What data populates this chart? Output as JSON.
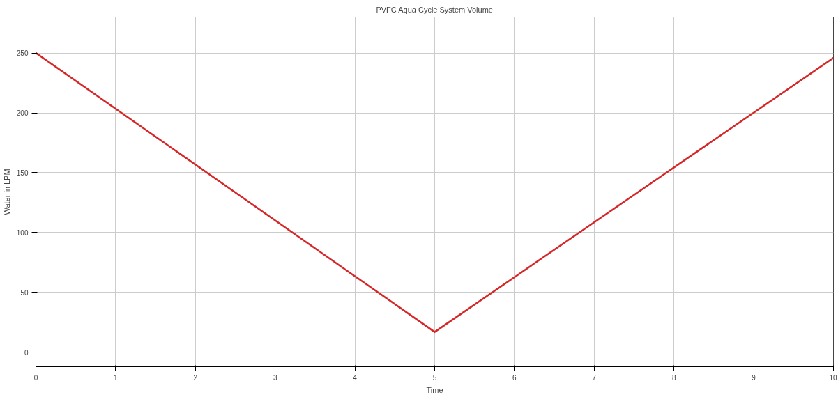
{
  "chart_data": {
    "type": "line",
    "title": "PVFC Aqua Cycle System Volume",
    "xlabel": "Time",
    "ylabel": "Water in LPM",
    "x": [
      0,
      5,
      10
    ],
    "series": [
      {
        "color": "#d62728",
        "values": [
          250,
          17,
          246
        ]
      }
    ],
    "xlim": [
      0,
      10
    ],
    "xticks": [
      0,
      1,
      2,
      3,
      4,
      5,
      6,
      7,
      8,
      9,
      10
    ],
    "ylim": [
      -12,
      280
    ],
    "yticks": [
      0,
      50,
      100,
      150,
      200,
      250
    ],
    "grid": true
  }
}
